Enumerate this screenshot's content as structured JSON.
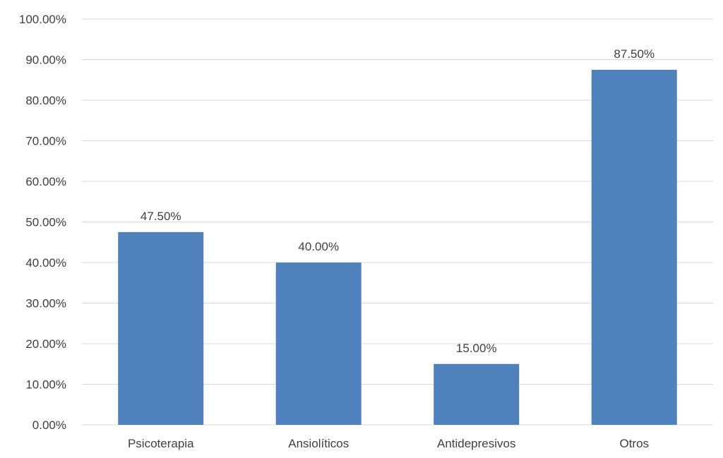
{
  "chart_data": {
    "type": "bar",
    "categories": [
      "Psicoterapia",
      "Ansiolíticos",
      "Antidepresivos",
      "Otros"
    ],
    "values": [
      47.5,
      40.0,
      15.0,
      87.5
    ],
    "data_labels": [
      "47.50%",
      "40.00%",
      "15.00%",
      "87.50%"
    ],
    "y_ticks": [
      "0.00%",
      "10.00%",
      "20.00%",
      "30.00%",
      "40.00%",
      "50.00%",
      "60.00%",
      "70.00%",
      "80.00%",
      "90.00%",
      "100.00%"
    ],
    "ylim": [
      0,
      100
    ],
    "title": "",
    "xlabel": "",
    "ylabel": "",
    "grid": true,
    "legend": "none",
    "bar_color": "#4f81bd",
    "grid_color": "#d9d9d9",
    "text_color": "#404040"
  }
}
